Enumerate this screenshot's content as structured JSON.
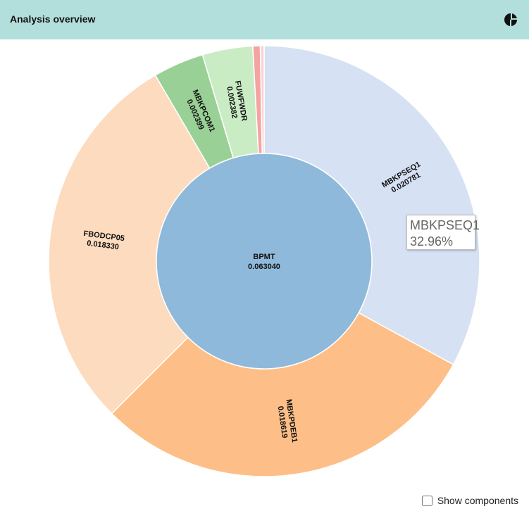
{
  "header": {
    "title": "Analysis overview"
  },
  "chart_data": {
    "type": "sunburst",
    "root": {
      "name": "BPMT",
      "value": 0.06304,
      "value_label": "0.063040",
      "color": "#8fb9da"
    },
    "categories": [
      "MBKPSEQ1",
      "MBKPDEB1",
      "FBODCP05",
      "MBKPCOM1",
      "FUWFWDR",
      null,
      null
    ],
    "values": [
      0.020781,
      0.018619,
      0.01833,
      0.002399,
      0.002382,
      0.00035,
      0.00018
    ],
    "value_labels": [
      "0.020781",
      "0.018619",
      "0.018330",
      "0.002399",
      "0.002382",
      null,
      null
    ],
    "colors": [
      "#d6e1f3",
      "#fdbf87",
      "#fddbbe",
      "#99d095",
      "#caecc5",
      "#f4a3a3",
      "#fbd3d3"
    ]
  },
  "tooltip": {
    "name": "MBKPSEQ1",
    "share": "32.96%"
  },
  "controls": {
    "show_components": "Show components"
  }
}
